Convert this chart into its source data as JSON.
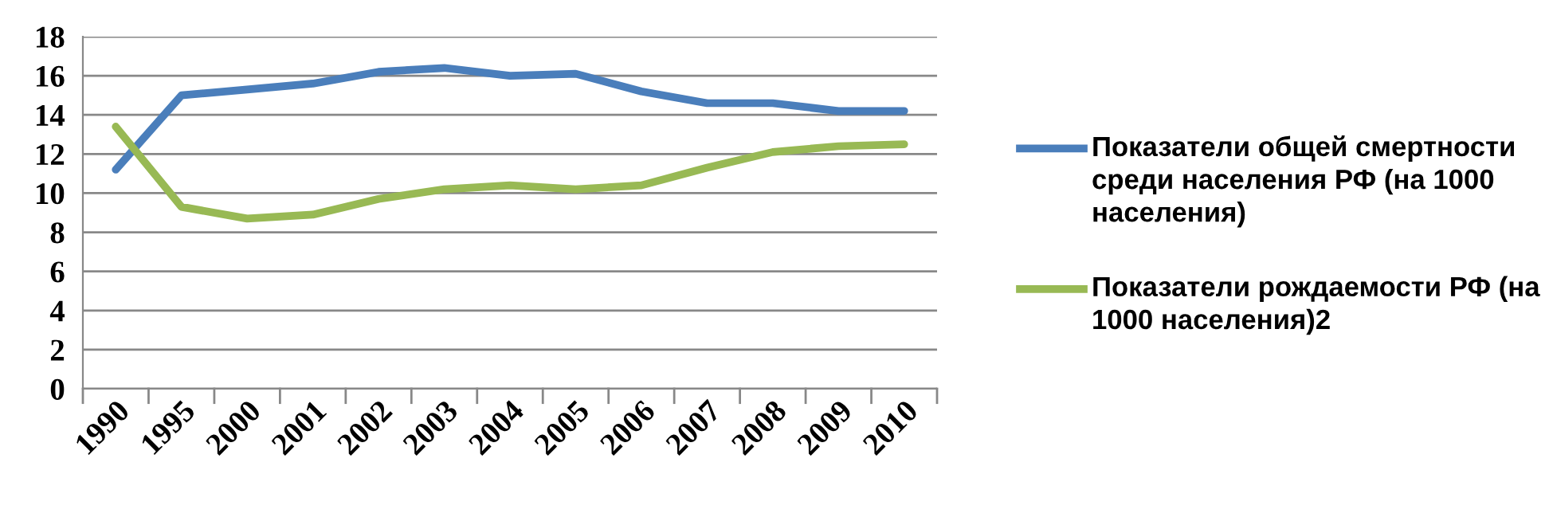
{
  "chart_data": {
    "type": "line",
    "categories": [
      "1990",
      "1995",
      "2000",
      "2001",
      "2002",
      "2003",
      "2004",
      "2005",
      "2006",
      "2007",
      "2008",
      "2009",
      "2010"
    ],
    "series": [
      {
        "name": "Показатели общей смертности среди населения РФ (на 1000 населения)",
        "color": "#4a7ebb",
        "values": [
          11.2,
          15.0,
          15.3,
          15.6,
          16.2,
          16.4,
          16.0,
          16.1,
          15.2,
          14.6,
          14.6,
          14.2,
          14.2
        ]
      },
      {
        "name": "Показатели рождаемости РФ (на 1000 населения)2",
        "color": "#98b954",
        "values": [
          13.4,
          9.3,
          8.7,
          8.9,
          9.7,
          10.2,
          10.4,
          10.2,
          10.4,
          11.3,
          12.1,
          12.4,
          12.5
        ]
      }
    ],
    "ylim": [
      0,
      18
    ],
    "yticks": [
      0,
      2,
      4,
      6,
      8,
      10,
      12,
      14,
      16,
      18
    ],
    "grid": "y",
    "legend": "right",
    "marker": "none",
    "line_style": "solid"
  }
}
